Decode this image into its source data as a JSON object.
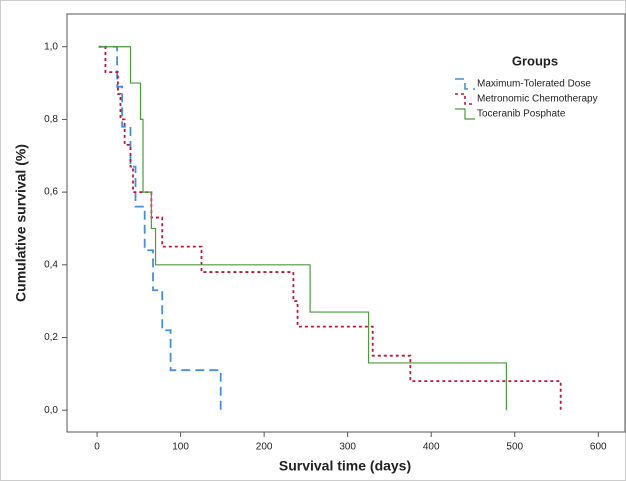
{
  "chart_data": {
    "type": "step",
    "xlabel": "Survival time (days)",
    "ylabel": "Cumulative survival (%)",
    "legend_title": "Groups",
    "legend": "upper right",
    "xlim": [
      -36,
      632
    ],
    "xticks": [
      0,
      100,
      200,
      300,
      400,
      500,
      600
    ],
    "ylim": [
      -0.06,
      1.09
    ],
    "yticks": [
      {
        "value": 0,
        "label": "0,0"
      },
      {
        "value": 0.2,
        "label": "0,2"
      },
      {
        "value": 0.4,
        "label": "0,4"
      },
      {
        "value": 0.6,
        "label": "0,6"
      },
      {
        "value": 0.8,
        "label": "0,8"
      },
      {
        "value": 1,
        "label": "1,0"
      }
    ],
    "series": [
      {
        "name": "Maximum-Tolerated Dose",
        "color": "#4a8fd6",
        "dash": "9,5",
        "x": [
          2,
          24,
          30,
          40,
          46,
          57,
          67,
          78,
          88,
          148
        ],
        "values": [
          1,
          0.89,
          0.78,
          0.67,
          0.56,
          0.44,
          0.33,
          0.22,
          0.11,
          0
        ]
      },
      {
        "name": "Metronomic Chemotherapy",
        "color": "#c0143c",
        "dash": "3,3",
        "x": [
          2,
          10,
          25,
          28,
          33,
          40,
          43,
          65,
          78,
          125,
          235,
          240,
          330,
          375,
          555
        ],
        "values": [
          1,
          0.93,
          0.87,
          0.8,
          0.73,
          0.67,
          0.6,
          0.53,
          0.45,
          0.38,
          0.3,
          0.23,
          0.15,
          0.08,
          0
        ]
      },
      {
        "name": "Toceranib Posphate",
        "color": "#4d9a3f",
        "dash": "none",
        "x": [
          2,
          40,
          52,
          55,
          65,
          70,
          255,
          325,
          490
        ],
        "values": [
          1,
          0.9,
          0.8,
          0.6,
          0.5,
          0.4,
          0.27,
          0.13,
          0
        ]
      }
    ]
  }
}
